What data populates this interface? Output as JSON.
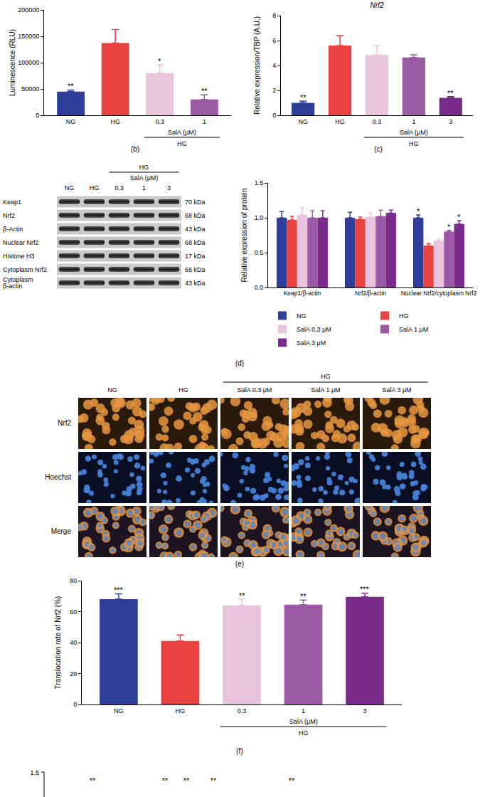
{
  "chart_data": [
    {
      "type": "bar",
      "caption": "(b)",
      "ylabel": "Luminescence (RLU)",
      "categories": [
        "NG",
        "HG",
        "0.3",
        "1"
      ],
      "values": [
        45000,
        137000,
        80000,
        30000
      ],
      "errors": [
        3000,
        26000,
        16000,
        9000
      ],
      "significance": [
        "**",
        null,
        "*",
        "**"
      ],
      "colors": [
        "#2e3d98",
        "#e8413f",
        "#eac4dc",
        "#9c5aa6"
      ],
      "ylim": [
        0,
        200000
      ],
      "yticks": [
        0,
        50000,
        100000,
        150000,
        200000
      ],
      "grid": false,
      "bracket": {
        "label": "SalA (μM)",
        "sublabel": "HG",
        "categories": [
          "0.3",
          "1"
        ]
      }
    },
    {
      "type": "bar",
      "caption": "(c)",
      "title": "Nrf2",
      "ylabel": "Relative expression/TBP (A.U.)",
      "categories": [
        "NG",
        "HG",
        "0.3",
        "1",
        "3"
      ],
      "values": [
        1.0,
        5.6,
        4.85,
        4.65,
        1.4
      ],
      "errors": [
        0.15,
        0.8,
        0.75,
        0.2,
        0.1
      ],
      "significance": [
        "**",
        null,
        null,
        null,
        "**"
      ],
      "colors": [
        "#2e3d98",
        "#e8413f",
        "#eac4dc",
        "#9c5aa6",
        "#7a2c8c"
      ],
      "ylim": [
        0,
        8
      ],
      "yticks": [
        0,
        2,
        4,
        6,
        8
      ],
      "grid": false,
      "bracket": {
        "label": "SalA (μM)",
        "sublabel": "HG",
        "categories": [
          "0.3",
          "1",
          "3"
        ]
      }
    },
    {
      "type": "bar",
      "caption": "(d)",
      "ylabel": "Relative expression of protein",
      "categories": [
        "Keap1/β-actin",
        "Nrf2/β-actin",
        "Nuclear Nrf2/cytoplasm Nrf2"
      ],
      "series": [
        {
          "name": "NG",
          "color": "#2e3d98",
          "values": [
            1.0,
            1.0,
            1.0
          ],
          "errors": [
            0.09,
            0.08,
            0.04
          ],
          "significance": [
            null,
            null,
            "*"
          ]
        },
        {
          "name": "HG",
          "color": "#e8413f",
          "values": [
            0.97,
            0.98,
            0.6
          ],
          "errors": [
            0.05,
            0.03,
            0.03
          ],
          "significance": [
            null,
            null,
            null
          ]
        },
        {
          "name": "SalA 0.3 μM",
          "color": "#eac4dc",
          "values": [
            1.04,
            1.01,
            0.67
          ],
          "errors": [
            0.1,
            0.06,
            0.03
          ],
          "significance": [
            null,
            null,
            null
          ]
        },
        {
          "name": "SalA 1 μM",
          "color": "#9c5aa6",
          "values": [
            1.0,
            1.02,
            0.8
          ],
          "errors": [
            0.1,
            0.09,
            0.02
          ],
          "significance": [
            null,
            null,
            "*"
          ]
        },
        {
          "name": "SalA 3 μM",
          "color": "#7a2c8c",
          "values": [
            1.0,
            1.07,
            0.91
          ],
          "errors": [
            0.1,
            0.04,
            0.05
          ],
          "significance": [
            null,
            null,
            "*"
          ]
        }
      ],
      "ylim": [
        0,
        1.5
      ],
      "yticks": [
        {
          "value": 0,
          "label": "0.0"
        },
        0.5,
        {
          "value": 1,
          "label": "1.0"
        },
        1.5
      ],
      "grid": false,
      "legend": "bottom"
    },
    {
      "type": "bar",
      "caption": "(f)",
      "ylabel": "Translocation rate of Nrf2 (%)",
      "categories": [
        "NG",
        "HG",
        "0.3",
        "1",
        "3"
      ],
      "values": [
        68,
        41,
        64,
        64.5,
        69.5
      ],
      "errors": [
        3.5,
        4,
        4,
        3,
        2.5
      ],
      "significance": [
        "***",
        null,
        "**",
        "**",
        "***"
      ],
      "colors": [
        "#2e3d98",
        "#e8413f",
        "#eac4dc",
        "#9c5aa6",
        "#7a2c8c"
      ],
      "ylim": [
        0,
        80
      ],
      "yticks": [
        0,
        20,
        40,
        60,
        80
      ],
      "grid": false,
      "bracket": {
        "label": "SalA (μM)",
        "sublabel": "HG",
        "categories": [
          "0.3",
          "1",
          "3"
        ]
      }
    }
  ],
  "blot": {
    "condition": "HG",
    "treatment": "SalA (μM)",
    "lanes": [
      "NG",
      "HG",
      "0.3",
      "1",
      "3"
    ],
    "treated_lanes": [
      "0.3",
      "1",
      "3"
    ],
    "rows": [
      {
        "label": [
          "Keap1"
        ],
        "size": "70 kDa"
      },
      {
        "label": [
          "Nrf2"
        ],
        "size": "68 kDa"
      },
      {
        "label": [
          "β-Actin"
        ],
        "size": "43 kDa"
      },
      {
        "label": [
          "Nuclear Nrf2"
        ],
        "size": "68 kDa"
      },
      {
        "label": [
          "Histone H3"
        ],
        "size": "17 kDa"
      },
      {
        "label": [
          "Cytoplasm Nrf2"
        ],
        "size": "68 kDa"
      },
      {
        "label": [
          "Cytoplasm",
          "β-actin"
        ],
        "size": "43 kDa"
      }
    ]
  },
  "images": {
    "caption": "(e)",
    "condition": "HG",
    "columns": [
      "NG",
      "HG",
      "SalA 0.3 μM",
      "SalA 1 μM",
      "SalA 3 μM"
    ],
    "treated_columns": [
      "SalA 0.3 μM",
      "SalA 1 μM",
      "SalA 3 μM"
    ],
    "rows": [
      "Nrf2",
      "Hoechst",
      "Merge"
    ]
  },
  "partial_panel": {
    "yticks": [
      1.5
    ],
    "annotations": [
      "**",
      "**",
      "**",
      "**",
      "**"
    ]
  }
}
